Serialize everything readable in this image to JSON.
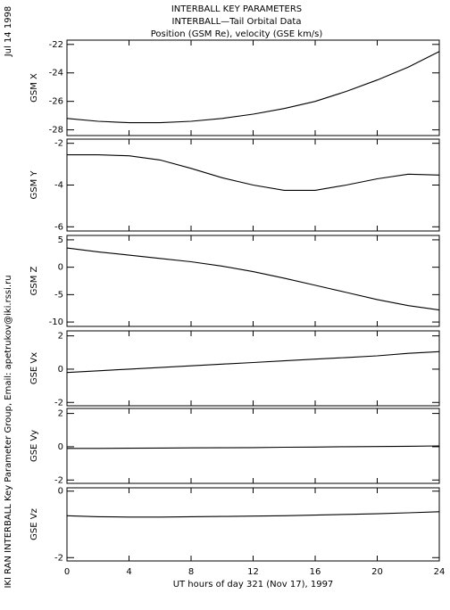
{
  "header": {
    "lines": [
      "INTERBALL KEY PARAMETERS",
      "INTERBALL—Tail Orbital Data",
      "Position (GSM Re), velocity (GSE km/s)"
    ]
  },
  "date_stamp": "Jul 14 1998",
  "credit": "IKI RAN INTERBALL Key Parameter Group, Email: apetrukov@iki.rssi.ru",
  "chart_data": [
    {
      "type": "line",
      "ylabel": "GSM X",
      "x": [
        0,
        2,
        4,
        6,
        8,
        10,
        12,
        14,
        16,
        18,
        20,
        22,
        24
      ],
      "values": [
        -27.2,
        -27.4,
        -27.5,
        -27.5,
        -27.4,
        -27.2,
        -26.9,
        -26.5,
        -26.0,
        -25.3,
        -24.5,
        -23.6,
        -22.5
      ],
      "xlim": [
        0,
        24
      ],
      "xticks": [
        0,
        4,
        8,
        12,
        16,
        20,
        24
      ],
      "ylim": [
        -28.4,
        -21.7
      ],
      "yticks": [
        -22,
        -24,
        -26,
        -28
      ]
    },
    {
      "type": "line",
      "ylabel": "GSM Y",
      "x": [
        0,
        2,
        4,
        6,
        8,
        10,
        12,
        14,
        16,
        18,
        20,
        22,
        24
      ],
      "values": [
        -2.55,
        -2.55,
        -2.6,
        -2.8,
        -3.2,
        -3.65,
        -4.0,
        -4.25,
        -4.25,
        -4.0,
        -3.7,
        -3.48,
        -3.52
      ],
      "xlim": [
        0,
        24
      ],
      "xticks": [
        0,
        4,
        8,
        12,
        16,
        20,
        24
      ],
      "ylim": [
        -6.2,
        -1.8
      ],
      "yticks": [
        -2,
        -4,
        -6
      ]
    },
    {
      "type": "line",
      "ylabel": "GSM Z",
      "x": [
        0,
        2,
        4,
        6,
        8,
        10,
        12,
        14,
        16,
        18,
        20,
        22,
        24
      ],
      "values": [
        3.5,
        2.8,
        2.2,
        1.6,
        1.0,
        0.2,
        -0.8,
        -2.0,
        -3.3,
        -4.6,
        -5.9,
        -7.0,
        -7.8
      ],
      "xlim": [
        0,
        24
      ],
      "xticks": [
        0,
        4,
        8,
        12,
        16,
        20,
        24
      ],
      "ylim": [
        -10.8,
        5.8
      ],
      "yticks": [
        5,
        0,
        -5,
        -10
      ]
    },
    {
      "type": "line",
      "ylabel": "GSE Vx",
      "x": [
        0,
        2,
        4,
        6,
        8,
        10,
        12,
        14,
        16,
        18,
        20,
        22,
        24
      ],
      "values": [
        -0.2,
        -0.1,
        0.0,
        0.1,
        0.2,
        0.3,
        0.4,
        0.5,
        0.6,
        0.7,
        0.8,
        0.95,
        1.05
      ],
      "xlim": [
        0,
        24
      ],
      "xticks": [
        0,
        4,
        8,
        12,
        16,
        20,
        24
      ],
      "ylim": [
        -2.2,
        2.3
      ],
      "yticks": [
        2,
        0,
        -2
      ]
    },
    {
      "type": "line",
      "ylabel": "GSE Vy",
      "x": [
        0,
        2,
        4,
        6,
        8,
        10,
        12,
        14,
        16,
        18,
        20,
        22,
        24
      ],
      "values": [
        -0.1,
        -0.1,
        -0.09,
        -0.08,
        -0.07,
        -0.06,
        -0.05,
        -0.03,
        -0.02,
        0.0,
        0.01,
        0.03,
        0.05
      ],
      "xlim": [
        0,
        24
      ],
      "xticks": [
        0,
        4,
        8,
        12,
        16,
        20,
        24
      ],
      "ylim": [
        -2.2,
        2.3
      ],
      "yticks": [
        2,
        0,
        -2
      ]
    },
    {
      "type": "line",
      "ylabel": "GSE Vz",
      "xlabel": "UT hours of day 321 (Nov 17), 1997",
      "x": [
        0,
        2,
        4,
        6,
        8,
        10,
        12,
        14,
        16,
        18,
        20,
        22,
        24
      ],
      "values": [
        -0.74,
        -0.77,
        -0.78,
        -0.78,
        -0.77,
        -0.76,
        -0.75,
        -0.74,
        -0.72,
        -0.7,
        -0.68,
        -0.65,
        -0.62
      ],
      "xlim": [
        0,
        24
      ],
      "xticks": [
        0,
        4,
        8,
        12,
        16,
        20,
        24
      ],
      "ylim": [
        -2.1,
        0.1
      ],
      "yticks": [
        0,
        -2
      ]
    }
  ]
}
